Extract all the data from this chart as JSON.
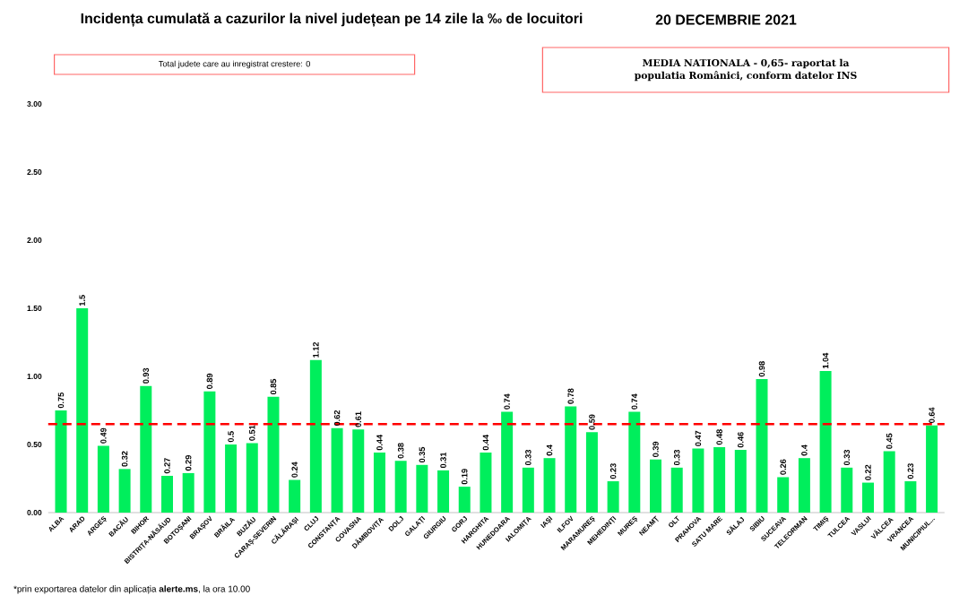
{
  "chart_data": {
    "type": "bar",
    "title": "Incidența cumulată a cazurilor la nivel județean pe 14 zile la ‰ de locuitori",
    "subtitle": "20 DECEMBRIE 2021",
    "categories": [
      "ALBA",
      "ARAD",
      "ARGEȘ",
      "BACĂU",
      "BIHOR",
      "BISTRIȚA-NĂSĂUD",
      "BOTOȘANI",
      "BRAȘOV",
      "BRĂILA",
      "BUZĂU",
      "CARAȘ-SEVERIN",
      "CĂLĂRAȘI",
      "CLUJ",
      "CONSTANȚA",
      "COVASNA",
      "DÂMBOVIȚA",
      "DOLJ",
      "GALAȚI",
      "GIURGIU",
      "GORJ",
      "HARGHITA",
      "HUNEDOARA",
      "IALOMIȚA",
      "IAȘI",
      "ILFOV",
      "MARAMUREȘ",
      "MEHEDINȚI",
      "MUREȘ",
      "NEAMȚ",
      "OLT",
      "PRAHOVA",
      "SATU MARE",
      "SĂLAJ",
      "SIBIU",
      "SUCEAVA",
      "TELEORMAN",
      "TIMIȘ",
      "TULCEA",
      "VASLUI",
      "VÂLCEA",
      "VRANCEA",
      "MUNICIPIUL..."
    ],
    "values": [
      0.75,
      1.5,
      0.49,
      0.32,
      0.93,
      0.27,
      0.29,
      0.89,
      0.5,
      0.51,
      0.85,
      0.24,
      1.12,
      0.62,
      0.61,
      0.44,
      0.38,
      0.35,
      0.31,
      0.19,
      0.44,
      0.74,
      0.33,
      0.4,
      0.78,
      0.59,
      0.23,
      0.74,
      0.39,
      0.33,
      0.47,
      0.48,
      0.46,
      0.98,
      0.26,
      0.4,
      1.04,
      0.33,
      0.22,
      0.45,
      0.23,
      0.64
    ],
    "color": "#00ee5c",
    "ylim": [
      0,
      3
    ],
    "yticks": [
      {
        "value": 0,
        "label": "0.00"
      },
      {
        "value": 0.5,
        "label": "0.50"
      },
      {
        "value": 1,
        "label": "1.00"
      },
      {
        "value": 1.5,
        "label": "1.50"
      },
      {
        "value": 2,
        "label": "2.00"
      },
      {
        "value": 2.5,
        "label": "2.50"
      },
      {
        "value": 3,
        "label": "3.00"
      }
    ],
    "data_labels": true,
    "ref_lines": [
      {
        "axis": "y",
        "value": 0.65,
        "color": "#ff0000",
        "line_style": "dashed"
      }
    ],
    "annotations": [
      "Total judete care au inregistrat crestere: 0",
      "MEDIA NATIONALA - 0,65-  raportat la populatia Românici, conform datelor INS",
      "*prin exportarea datelor din aplicația **alerte.ms**, la ora 10.00"
    ]
  }
}
